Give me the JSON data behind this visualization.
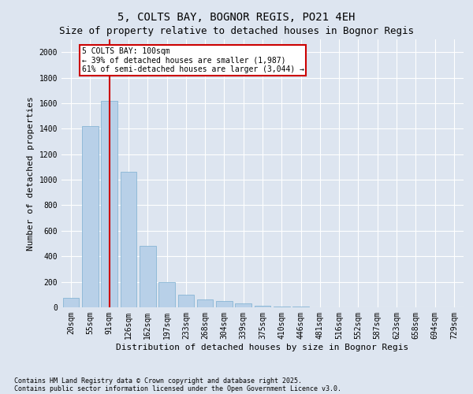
{
  "title1": "5, COLTS BAY, BOGNOR REGIS, PO21 4EH",
  "title2": "Size of property relative to detached houses in Bognor Regis",
  "xlabel": "Distribution of detached houses by size in Bognor Regis",
  "ylabel": "Number of detached properties",
  "categories": [
    "20sqm",
    "55sqm",
    "91sqm",
    "126sqm",
    "162sqm",
    "197sqm",
    "233sqm",
    "268sqm",
    "304sqm",
    "339sqm",
    "375sqm",
    "410sqm",
    "446sqm",
    "481sqm",
    "516sqm",
    "552sqm",
    "587sqm",
    "623sqm",
    "658sqm",
    "694sqm",
    "729sqm"
  ],
  "values": [
    75,
    1420,
    1620,
    1060,
    480,
    200,
    100,
    60,
    50,
    30,
    15,
    8,
    5,
    3,
    2,
    1,
    1,
    0,
    0,
    0,
    0
  ],
  "bar_color": "#b8d0e8",
  "bar_edge_color": "#7aaed0",
  "vline_x": 2,
  "vline_color": "#cc0000",
  "annotation_title": "5 COLTS BAY: 100sqm",
  "annotation_line1": "← 39% of detached houses are smaller (1,987)",
  "annotation_line2": "61% of semi-detached houses are larger (3,044) →",
  "annotation_box_color": "#cc0000",
  "bg_color": "#dde5f0",
  "plot_bg_color": "#dde5f0",
  "ylim": [
    0,
    2100
  ],
  "yticks": [
    0,
    200,
    400,
    600,
    800,
    1000,
    1200,
    1400,
    1600,
    1800,
    2000
  ],
  "footnote1": "Contains HM Land Registry data © Crown copyright and database right 2025.",
  "footnote2": "Contains public sector information licensed under the Open Government Licence v3.0.",
  "title_fontsize": 10,
  "subtitle_fontsize": 9,
  "tick_fontsize": 7,
  "axis_label_fontsize": 8
}
